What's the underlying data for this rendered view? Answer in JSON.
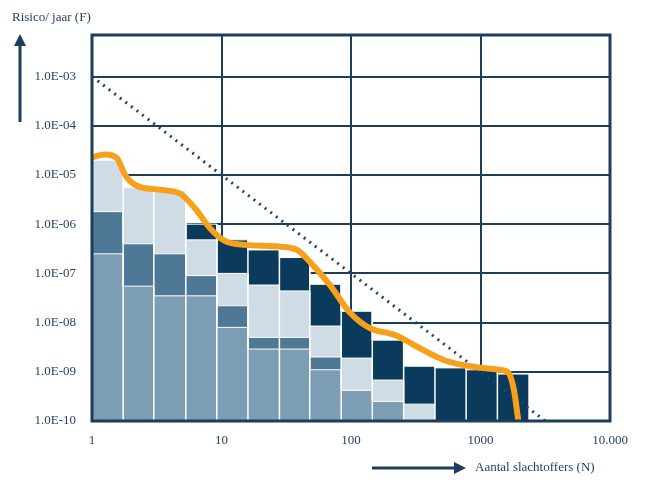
{
  "chart_data": {
    "type": "bar",
    "xlabel": "Aantal slachtoffers (N)",
    "ylabel": "Risico/ jaar (F)",
    "log": true,
    "grid": true,
    "stacked": false,
    "xlim": [
      1,
      10000
    ],
    "ylim": [
      1e-10,
      0.007
    ],
    "xticks": [
      1,
      10,
      100,
      1000,
      {
        "value": 10000,
        "label": "10.000"
      }
    ],
    "yticks": [
      {
        "value": 0.001,
        "label": "1.0E-03"
      },
      {
        "value": 0.0001,
        "label": "1.0E-04"
      },
      {
        "value": 1e-05,
        "label": "1.0E-05"
      },
      {
        "value": 1e-06,
        "label": "1.0E-06"
      },
      {
        "value": 1e-07,
        "label": "1.0E-07"
      },
      {
        "value": 1e-08,
        "label": "1.0E-08"
      },
      {
        "value": 1e-09,
        "label": "1.0E-09"
      },
      {
        "value": 1e-10,
        "label": "1.0E-10"
      }
    ],
    "bins": [
      1,
      1.74,
      3.0,
      5.3,
      9.2,
      16,
      28,
      48,
      84,
      146,
      255,
      445,
      775,
      1350,
      2350
    ],
    "series": [
      {
        "type": "bar",
        "color": "#7d9db4",
        "values": [
          2.5e-07,
          5.5e-08,
          3.5e-08,
          3.5e-08,
          8e-09,
          2.9e-09,
          2.9e-09,
          1.1e-09,
          4.2e-10,
          2.5e-10,
          null,
          null,
          null,
          null
        ]
      },
      {
        "type": "bar",
        "color": "#4e7895",
        "values": [
          1.8e-06,
          4e-07,
          2.5e-07,
          9e-08,
          2.2e-08,
          5e-09,
          5e-09,
          2e-09,
          null,
          null,
          null,
          null,
          null,
          null
        ]
      },
      {
        "type": "bar",
        "color": "#cfdbe5",
        "values": [
          2e-05,
          5.5e-06,
          4.8e-06,
          4.8e-07,
          1e-07,
          5.8e-08,
          4.4e-08,
          8.5e-09,
          1.9e-09,
          6.8e-10,
          2.2e-10,
          null,
          null,
          null
        ]
      },
      {
        "type": "bar",
        "color": "#0b3b5c",
        "values": [
          null,
          null,
          null,
          1e-06,
          4.8e-07,
          3e-07,
          2.1e-07,
          6e-08,
          1.7e-08,
          4.4e-09,
          1.3e-09,
          1.2e-09,
          1.1e-09,
          9e-10
        ]
      },
      {
        "type": "line",
        "color": "#f7a01c",
        "line_style": "solid",
        "x": [
          1,
          1.26,
          1.56,
          1.8,
          2.15,
          3.35,
          4.78,
          6.24,
          8.15,
          10.6,
          15.2,
          28.3,
          38.3,
          48.3,
          68.8,
          98,
          140,
          219,
          341,
          532,
          830,
          1415,
          1630,
          1815,
          1950
        ],
        "values": [
          2.3e-05,
          2.6e-05,
          2.2e-05,
          1e-05,
          6.3e-06,
          5e-06,
          4.2e-06,
          2.1e-06,
          8.3e-07,
          4.6e-07,
          3.8e-07,
          3.5e-07,
          3e-07,
          1.7e-07,
          5.8e-08,
          1.6e-08,
          7.7e-09,
          5.6e-09,
          3e-09,
          1.7e-09,
          1.3e-09,
          1.1e-09,
          9.8e-10,
          4.2e-10,
          1.1e-10
        ]
      },
      {
        "type": "line",
        "color": "#1e4666",
        "line_style": "dotted",
        "x": [
          1,
          3162
        ],
        "values": [
          0.001,
          1e-10
        ]
      }
    ]
  }
}
